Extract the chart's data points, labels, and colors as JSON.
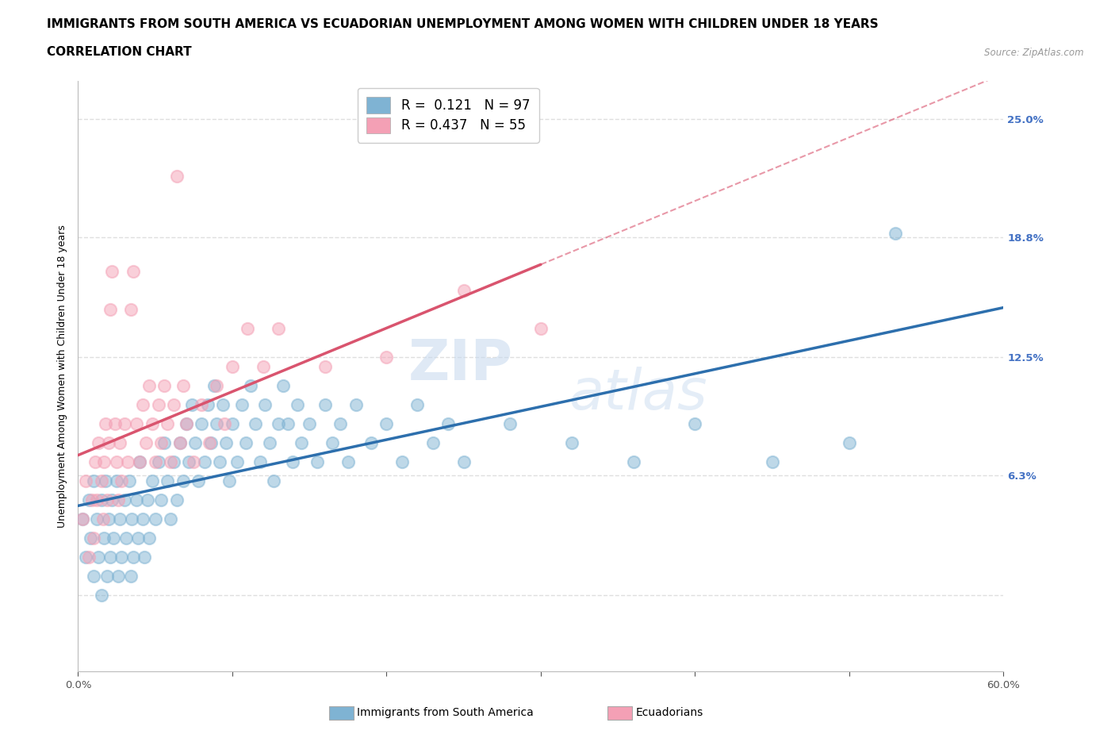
{
  "title": "IMMIGRANTS FROM SOUTH AMERICA VS ECUADORIAN UNEMPLOYMENT AMONG WOMEN WITH CHILDREN UNDER 18 YEARS",
  "subtitle": "CORRELATION CHART",
  "source": "Source: ZipAtlas.com",
  "ylabel": "Unemployment Among Women with Children Under 18 years",
  "xlim": [
    0.0,
    0.6
  ],
  "ylim": [
    -0.04,
    0.27
  ],
  "yticks": [
    0.0,
    0.063,
    0.125,
    0.188,
    0.25
  ],
  "ytick_labels": [
    "",
    "6.3%",
    "12.5%",
    "18.8%",
    "25.0%"
  ],
  "xtick_labels": [
    "0.0%",
    "",
    "",
    "",
    "",
    "",
    "60.0%"
  ],
  "xticks": [
    0.0,
    0.1,
    0.2,
    0.3,
    0.4,
    0.5,
    0.6
  ],
  "color_blue": "#7fb3d3",
  "color_pink": "#f4a0b5",
  "color_blue_line": "#2d6fad",
  "color_pink_line": "#d9546e",
  "R_blue": 0.121,
  "N_blue": 97,
  "R_pink": 0.437,
  "N_pink": 55,
  "blue_scatter": [
    [
      0.003,
      0.04
    ],
    [
      0.005,
      0.02
    ],
    [
      0.007,
      0.05
    ],
    [
      0.008,
      0.03
    ],
    [
      0.01,
      0.06
    ],
    [
      0.01,
      0.01
    ],
    [
      0.012,
      0.04
    ],
    [
      0.013,
      0.02
    ],
    [
      0.015,
      0.05
    ],
    [
      0.015,
      0.0
    ],
    [
      0.017,
      0.03
    ],
    [
      0.018,
      0.06
    ],
    [
      0.019,
      0.01
    ],
    [
      0.02,
      0.04
    ],
    [
      0.021,
      0.02
    ],
    [
      0.022,
      0.05
    ],
    [
      0.023,
      0.03
    ],
    [
      0.025,
      0.06
    ],
    [
      0.026,
      0.01
    ],
    [
      0.027,
      0.04
    ],
    [
      0.028,
      0.02
    ],
    [
      0.03,
      0.05
    ],
    [
      0.031,
      0.03
    ],
    [
      0.033,
      0.06
    ],
    [
      0.034,
      0.01
    ],
    [
      0.035,
      0.04
    ],
    [
      0.036,
      0.02
    ],
    [
      0.038,
      0.05
    ],
    [
      0.039,
      0.03
    ],
    [
      0.04,
      0.07
    ],
    [
      0.042,
      0.04
    ],
    [
      0.043,
      0.02
    ],
    [
      0.045,
      0.05
    ],
    [
      0.046,
      0.03
    ],
    [
      0.048,
      0.06
    ],
    [
      0.05,
      0.04
    ],
    [
      0.052,
      0.07
    ],
    [
      0.054,
      0.05
    ],
    [
      0.056,
      0.08
    ],
    [
      0.058,
      0.06
    ],
    [
      0.06,
      0.04
    ],
    [
      0.062,
      0.07
    ],
    [
      0.064,
      0.05
    ],
    [
      0.066,
      0.08
    ],
    [
      0.068,
      0.06
    ],
    [
      0.07,
      0.09
    ],
    [
      0.072,
      0.07
    ],
    [
      0.074,
      0.1
    ],
    [
      0.076,
      0.08
    ],
    [
      0.078,
      0.06
    ],
    [
      0.08,
      0.09
    ],
    [
      0.082,
      0.07
    ],
    [
      0.084,
      0.1
    ],
    [
      0.086,
      0.08
    ],
    [
      0.088,
      0.11
    ],
    [
      0.09,
      0.09
    ],
    [
      0.092,
      0.07
    ],
    [
      0.094,
      0.1
    ],
    [
      0.096,
      0.08
    ],
    [
      0.098,
      0.06
    ],
    [
      0.1,
      0.09
    ],
    [
      0.103,
      0.07
    ],
    [
      0.106,
      0.1
    ],
    [
      0.109,
      0.08
    ],
    [
      0.112,
      0.11
    ],
    [
      0.115,
      0.09
    ],
    [
      0.118,
      0.07
    ],
    [
      0.121,
      0.1
    ],
    [
      0.124,
      0.08
    ],
    [
      0.127,
      0.06
    ],
    [
      0.13,
      0.09
    ],
    [
      0.133,
      0.11
    ],
    [
      0.136,
      0.09
    ],
    [
      0.139,
      0.07
    ],
    [
      0.142,
      0.1
    ],
    [
      0.145,
      0.08
    ],
    [
      0.15,
      0.09
    ],
    [
      0.155,
      0.07
    ],
    [
      0.16,
      0.1
    ],
    [
      0.165,
      0.08
    ],
    [
      0.17,
      0.09
    ],
    [
      0.175,
      0.07
    ],
    [
      0.18,
      0.1
    ],
    [
      0.19,
      0.08
    ],
    [
      0.2,
      0.09
    ],
    [
      0.21,
      0.07
    ],
    [
      0.22,
      0.1
    ],
    [
      0.23,
      0.08
    ],
    [
      0.24,
      0.09
    ],
    [
      0.25,
      0.07
    ],
    [
      0.28,
      0.09
    ],
    [
      0.32,
      0.08
    ],
    [
      0.36,
      0.07
    ],
    [
      0.4,
      0.09
    ],
    [
      0.45,
      0.07
    ],
    [
      0.5,
      0.08
    ],
    [
      0.53,
      0.19
    ]
  ],
  "pink_scatter": [
    [
      0.003,
      0.04
    ],
    [
      0.005,
      0.06
    ],
    [
      0.007,
      0.02
    ],
    [
      0.009,
      0.05
    ],
    [
      0.01,
      0.03
    ],
    [
      0.011,
      0.07
    ],
    [
      0.012,
      0.05
    ],
    [
      0.013,
      0.08
    ],
    [
      0.015,
      0.06
    ],
    [
      0.016,
      0.04
    ],
    [
      0.017,
      0.07
    ],
    [
      0.018,
      0.09
    ],
    [
      0.019,
      0.05
    ],
    [
      0.02,
      0.08
    ],
    [
      0.021,
      0.15
    ],
    [
      0.022,
      0.17
    ],
    [
      0.024,
      0.09
    ],
    [
      0.025,
      0.07
    ],
    [
      0.026,
      0.05
    ],
    [
      0.027,
      0.08
    ],
    [
      0.028,
      0.06
    ],
    [
      0.03,
      0.09
    ],
    [
      0.032,
      0.07
    ],
    [
      0.034,
      0.15
    ],
    [
      0.036,
      0.17
    ],
    [
      0.038,
      0.09
    ],
    [
      0.04,
      0.07
    ],
    [
      0.042,
      0.1
    ],
    [
      0.044,
      0.08
    ],
    [
      0.046,
      0.11
    ],
    [
      0.048,
      0.09
    ],
    [
      0.05,
      0.07
    ],
    [
      0.052,
      0.1
    ],
    [
      0.054,
      0.08
    ],
    [
      0.056,
      0.11
    ],
    [
      0.058,
      0.09
    ],
    [
      0.06,
      0.07
    ],
    [
      0.062,
      0.1
    ],
    [
      0.064,
      0.22
    ],
    [
      0.066,
      0.08
    ],
    [
      0.068,
      0.11
    ],
    [
      0.07,
      0.09
    ],
    [
      0.075,
      0.07
    ],
    [
      0.08,
      0.1
    ],
    [
      0.085,
      0.08
    ],
    [
      0.09,
      0.11
    ],
    [
      0.095,
      0.09
    ],
    [
      0.1,
      0.12
    ],
    [
      0.11,
      0.14
    ],
    [
      0.12,
      0.12
    ],
    [
      0.13,
      0.14
    ],
    [
      0.16,
      0.12
    ],
    [
      0.2,
      0.125
    ],
    [
      0.25,
      0.16
    ],
    [
      0.3,
      0.14
    ]
  ],
  "watermark_zip": "ZIP",
  "watermark_atlas": "atlas",
  "grid_color": "#d8d8d8",
  "background_color": "#ffffff",
  "title_fontsize": 11,
  "axis_label_fontsize": 9,
  "tick_fontsize": 9.5,
  "legend_fontsize": 12
}
